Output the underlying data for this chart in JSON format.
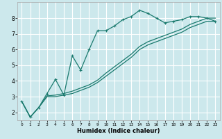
{
  "xlabel": "Humidex (Indice chaleur)",
  "background_color": "#cce8ec",
  "grid_color": "#ffffff",
  "line_color": "#1a7a6e",
  "x_values": [
    0,
    1,
    2,
    3,
    4,
    5,
    6,
    7,
    8,
    9,
    10,
    11,
    12,
    13,
    14,
    15,
    16,
    17,
    18,
    19,
    20,
    21,
    22,
    23
  ],
  "line1_y": [
    2.7,
    1.7,
    2.3,
    3.2,
    4.1,
    3.1,
    5.6,
    4.7,
    6.0,
    7.2,
    7.2,
    7.5,
    7.9,
    8.1,
    8.5,
    8.3,
    8.0,
    7.7,
    7.8,
    7.9,
    8.1,
    8.1,
    8.0,
    7.8
  ],
  "line2_y": [
    2.7,
    1.7,
    2.3,
    3.0,
    3.0,
    3.1,
    3.2,
    3.4,
    3.6,
    3.9,
    4.3,
    4.7,
    5.1,
    5.5,
    6.0,
    6.3,
    6.5,
    6.7,
    6.9,
    7.1,
    7.4,
    7.6,
    7.8,
    7.8
  ],
  "line3_y": [
    2.7,
    1.7,
    2.3,
    3.05,
    3.1,
    3.2,
    3.35,
    3.55,
    3.75,
    4.05,
    4.5,
    4.9,
    5.3,
    5.7,
    6.2,
    6.5,
    6.7,
    6.9,
    7.1,
    7.3,
    7.6,
    7.8,
    8.0,
    8.0
  ],
  "ylim": [
    1.5,
    9.0
  ],
  "xlim": [
    -0.5,
    23.5
  ],
  "yticks": [
    2,
    3,
    4,
    5,
    6,
    7,
    8
  ],
  "xticks": [
    0,
    1,
    2,
    3,
    4,
    5,
    6,
    7,
    8,
    9,
    10,
    11,
    12,
    13,
    14,
    15,
    16,
    17,
    18,
    19,
    20,
    21,
    22,
    23
  ]
}
